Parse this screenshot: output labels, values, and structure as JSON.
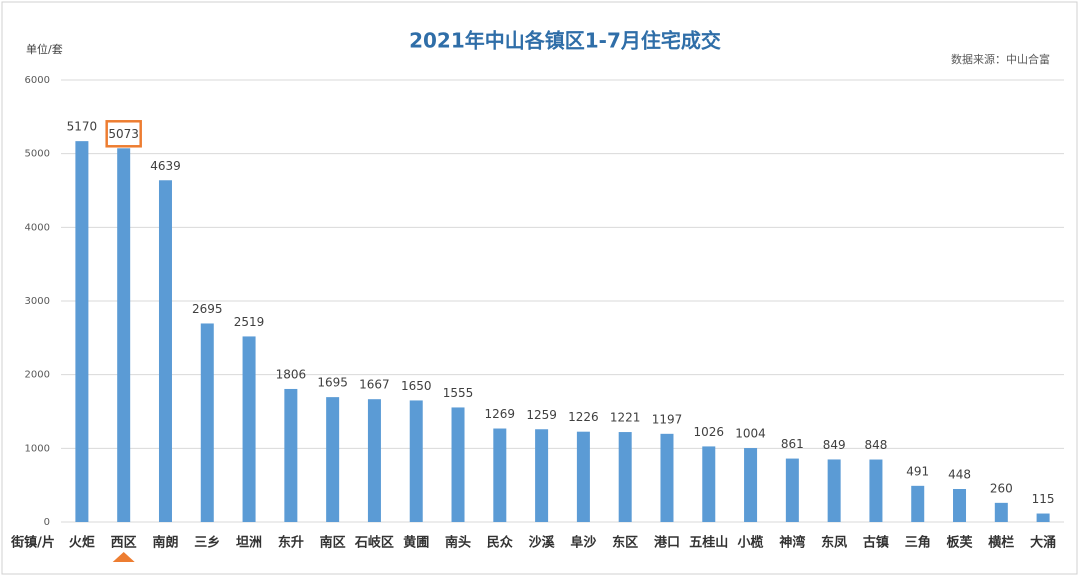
{
  "chart_data": {
    "type": "bar",
    "title": "2021年中山各镇区1-7月住宅成交",
    "y_label": "单位/套",
    "x_label": "街镇/片",
    "source": "数据来源：中山合富",
    "categories": [
      "火炬",
      "西区",
      "南朗",
      "三乡",
      "坦洲",
      "东升",
      "南区",
      "石岐区",
      "黄圃",
      "南头",
      "民众",
      "沙溪",
      "阜沙",
      "东区",
      "港口",
      "五桂山",
      "小榄",
      "神湾",
      "东凤",
      "古镇",
      "三角",
      "板芙",
      "横栏",
      "大涌"
    ],
    "values": [
      5170,
      5073,
      4639,
      2695,
      2519,
      1806,
      1695,
      1667,
      1650,
      1555,
      1269,
      1259,
      1226,
      1221,
      1197,
      1026,
      1004,
      861,
      849,
      848,
      491,
      448,
      260,
      115
    ],
    "color": "#5b9bd5",
    "ylim": [
      0,
      6000
    ],
    "yticks": [
      0,
      1000,
      2000,
      3000,
      4000,
      5000,
      6000
    ],
    "grid": true,
    "highlight_index": 1
  }
}
